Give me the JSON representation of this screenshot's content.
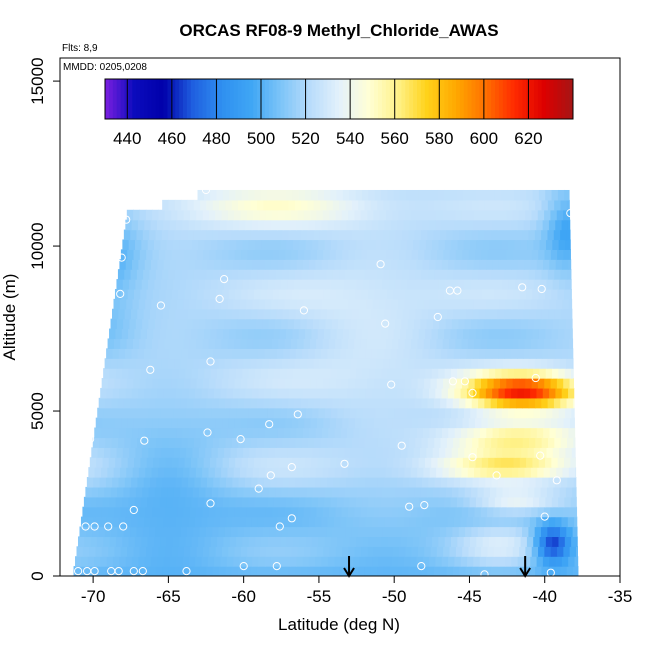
{
  "chart_data": {
    "type": "heatmap",
    "title": "ORCAS RF08-9 Methyl_Chloride_AWAS",
    "xlabel": "Latitude (deg N)",
    "ylabel": "Altitude (m)",
    "xlim": [
      -72.2,
      -35
    ],
    "ylim": [
      0,
      15700
    ],
    "x_ticks": [
      -70,
      -65,
      -60,
      -55,
      -50,
      -45,
      -40,
      -35
    ],
    "x_tick_labels": [
      "-70",
      "-65",
      "-60",
      "-55",
      "-50",
      "-45",
      "-40",
      "-35"
    ],
    "y_ticks": [
      0,
      5000,
      10000,
      15000
    ],
    "y_tick_labels": [
      "0",
      "5000",
      "10000",
      "15000"
    ],
    "annotations": [
      "Flts: 8,9",
      "MMDD: 0205,0208"
    ],
    "colorbar": {
      "ticks": [
        440,
        460,
        480,
        500,
        520,
        540,
        560,
        580,
        600,
        620
      ],
      "tick_labels": [
        "440",
        "460",
        "480",
        "500",
        "520",
        "540",
        "560",
        "580",
        "600",
        "620"
      ],
      "range": [
        430,
        640
      ],
      "colors": [
        "#7b1fe0",
        "#0b0bbd",
        "#0000aa",
        "#1f5fe0",
        "#2f8ff0",
        "#3fa6f5",
        "#7cc4f8",
        "#b8dcfb",
        "#e3f1fb",
        "#ffffd6",
        "#fff28a",
        "#ffd21a",
        "#ffa800",
        "#ff7000",
        "#ff2a00",
        "#dd0000",
        "#a51515"
      ]
    },
    "field_extent": {
      "lat_min": -71.3,
      "lat_max": -37.8,
      "alt_max": 11600
    },
    "sample_points": [
      {
        "x": -71,
        "y": 150
      },
      {
        "x": -70.4,
        "y": 150
      },
      {
        "x": -69.9,
        "y": 150
      },
      {
        "x": -68.8,
        "y": 150
      },
      {
        "x": -68.3,
        "y": 150
      },
      {
        "x": -67.3,
        "y": 150
      },
      {
        "x": -66.7,
        "y": 150
      },
      {
        "x": -63.8,
        "y": 150
      },
      {
        "x": -60,
        "y": 300
      },
      {
        "x": -57.8,
        "y": 300
      },
      {
        "x": -48.2,
        "y": 300
      },
      {
        "x": -44,
        "y": 50
      },
      {
        "x": -39.6,
        "y": 100
      },
      {
        "x": -70.5,
        "y": 1500
      },
      {
        "x": -69.9,
        "y": 1500
      },
      {
        "x": -69,
        "y": 1500
      },
      {
        "x": -68,
        "y": 1500
      },
      {
        "x": -67.3,
        "y": 2000
      },
      {
        "x": -62.2,
        "y": 2200
      },
      {
        "x": -57.6,
        "y": 1500
      },
      {
        "x": -56.8,
        "y": 1750
      },
      {
        "x": -49,
        "y": 2100
      },
      {
        "x": -48,
        "y": 2150
      },
      {
        "x": -43.2,
        "y": 3050
      },
      {
        "x": -40,
        "y": 1800
      },
      {
        "x": -59,
        "y": 2650
      },
      {
        "x": -58.2,
        "y": 3050
      },
      {
        "x": -56.8,
        "y": 3300
      },
      {
        "x": -53.3,
        "y": 3400
      },
      {
        "x": -70.2,
        "y": 4150
      },
      {
        "x": -66.6,
        "y": 4100
      },
      {
        "x": -62.4,
        "y": 4350
      },
      {
        "x": -60.2,
        "y": 4150
      },
      {
        "x": -58.3,
        "y": 4600
      },
      {
        "x": -56.4,
        "y": 4900
      },
      {
        "x": -49.5,
        "y": 3950
      },
      {
        "x": -44.8,
        "y": 3600
      },
      {
        "x": -40.3,
        "y": 3650
      },
      {
        "x": -39.2,
        "y": 2900
      },
      {
        "x": -66.2,
        "y": 6250
      },
      {
        "x": -62.2,
        "y": 6500
      },
      {
        "x": -50.2,
        "y": 5800
      },
      {
        "x": -46.1,
        "y": 5900
      },
      {
        "x": -45.3,
        "y": 5900
      },
      {
        "x": -44.8,
        "y": 5550
      },
      {
        "x": -40.6,
        "y": 6000
      },
      {
        "x": -61.6,
        "y": 8400
      },
      {
        "x": -65.5,
        "y": 8200
      },
      {
        "x": -56,
        "y": 8050
      },
      {
        "x": -50.6,
        "y": 7650
      },
      {
        "x": -47.1,
        "y": 7850
      },
      {
        "x": -41.5,
        "y": 8750
      },
      {
        "x": -40.2,
        "y": 8700
      },
      {
        "x": -68.2,
        "y": 8550
      },
      {
        "x": -61.3,
        "y": 9000
      },
      {
        "x": -46.3,
        "y": 8650
      },
      {
        "x": -45.8,
        "y": 8650
      },
      {
        "x": -50.9,
        "y": 9450
      },
      {
        "x": -68.1,
        "y": 9650
      },
      {
        "x": -67.8,
        "y": 10800
      },
      {
        "x": -62.5,
        "y": 11700
      },
      {
        "x": -38.3,
        "y": 11000
      }
    ],
    "arrow_markers": [
      {
        "x": -53.0
      },
      {
        "x": -41.3
      }
    ]
  }
}
